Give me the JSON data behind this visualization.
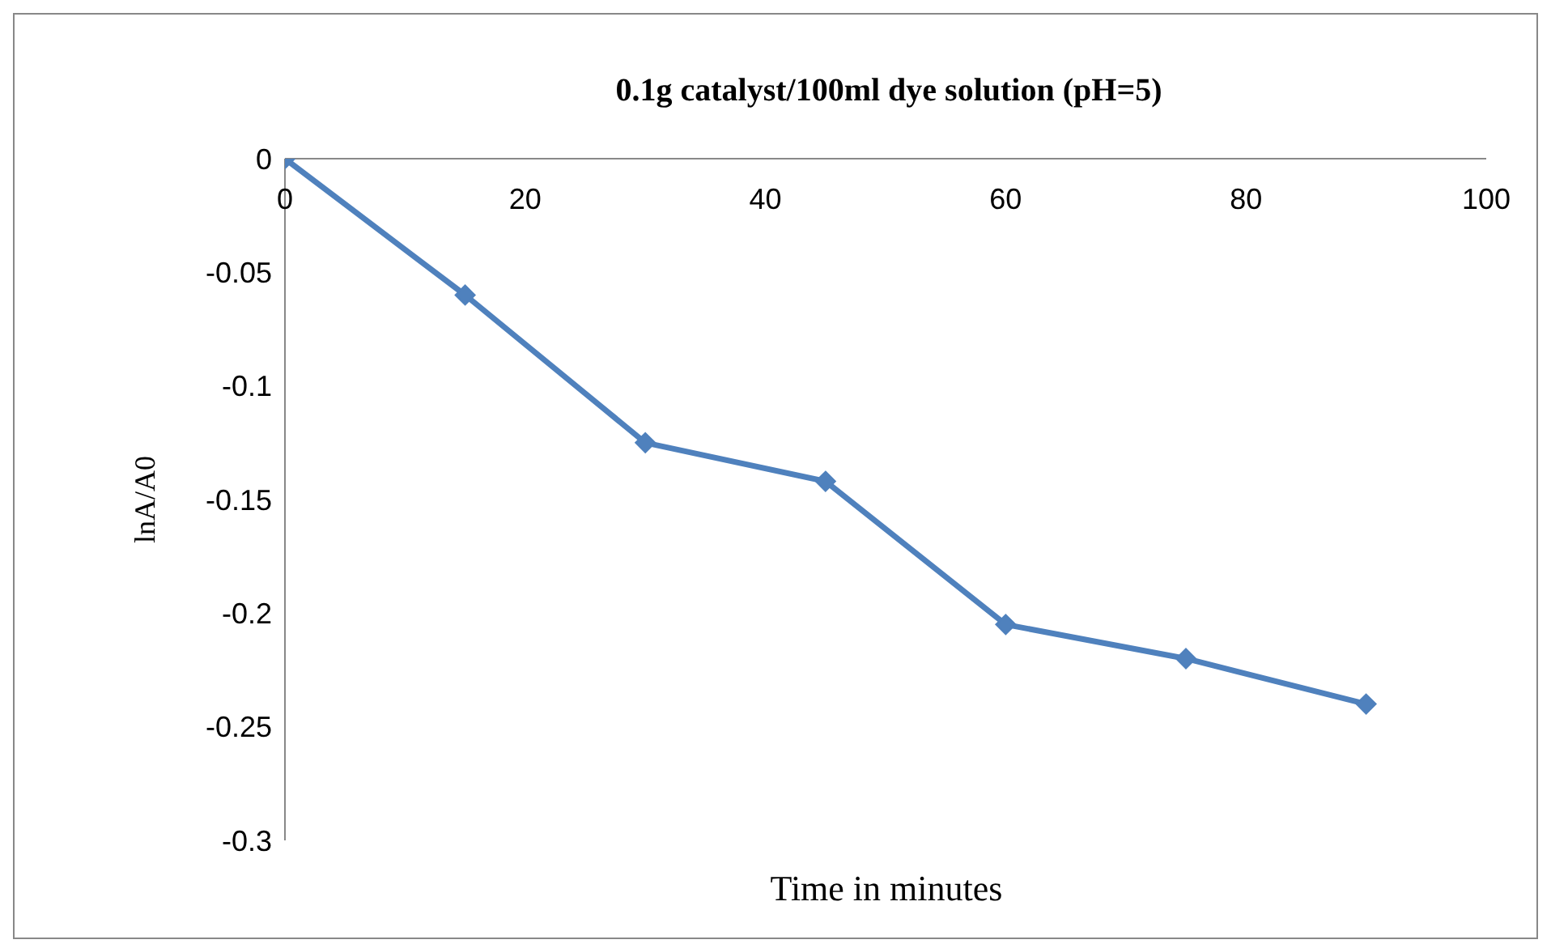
{
  "chart_data": {
    "type": "line",
    "title": "0.1g  catalyst/100ml dye solution (pH=5)",
    "xlabel": "Time in minutes",
    "ylabel": "lnA/A0",
    "x": [
      0,
      15,
      30,
      45,
      60,
      75,
      90
    ],
    "series": [
      {
        "color": "#4f81bd",
        "values": [
          0,
          -0.06,
          -0.125,
          -0.142,
          -0.205,
          -0.22,
          -0.24
        ]
      }
    ],
    "xlim": [
      0,
      100
    ],
    "xticks": [
      0,
      20,
      40,
      60,
      80,
      100
    ],
    "ylim": [
      -0.3,
      0
    ],
    "yticks": [
      -0.3,
      -0.25,
      -0.2,
      -0.15,
      -0.1,
      -0.05,
      0
    ],
    "grid": false,
    "legend": false,
    "marker": "diamond",
    "line_style": "solid"
  }
}
